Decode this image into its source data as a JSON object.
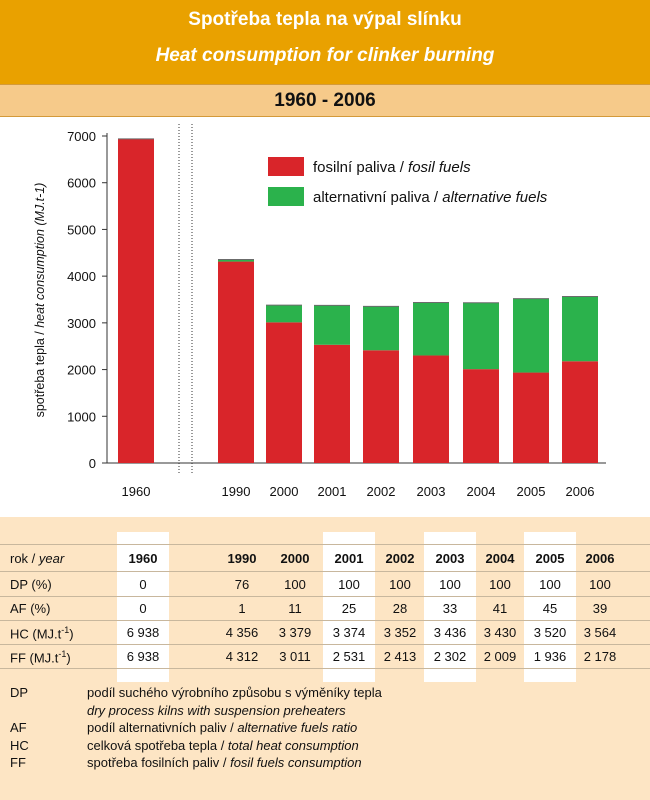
{
  "header": {
    "title_cz": "Spotřeba tepla na výpal slínku",
    "title_en": "Heat consumption for clinker burning",
    "period": "1960 - 2006"
  },
  "chart_data": {
    "type": "bar",
    "stacked": true,
    "categories": [
      "1960",
      "1990",
      "2000",
      "2001",
      "2002",
      "2003",
      "2004",
      "2005",
      "2006"
    ],
    "series": [
      {
        "name": "fosilní paliva / fosil fuels",
        "color": "#d9252a",
        "values": [
          6938,
          4312,
          3011,
          2531,
          2413,
          2302,
          2009,
          1936,
          2178
        ]
      },
      {
        "name": "alternativní paliva / alternative fuels",
        "color": "#2bb24c",
        "values": [
          0,
          44,
          368,
          843,
          939,
          1134,
          1421,
          1584,
          1386
        ]
      }
    ],
    "ylabel_cz": "spotřeba tepla / ",
    "ylabel_en": "heat consumption (MJ.t-1)",
    "ylim": [
      0,
      7000
    ],
    "yticks": [
      "0",
      "1000",
      "2000",
      "3000",
      "4000",
      "5000",
      "6000",
      "7000"
    ],
    "grid": false,
    "legend_position": "top-right",
    "break_between": [
      "1960",
      "1990"
    ]
  },
  "legend": {
    "fossil_cz": "fosilní paliva",
    "fossil_en": "fosil fuels",
    "alt_cz": "alternativní paliva",
    "alt_en": "alternative fuels",
    "sep": " / "
  },
  "table": {
    "header_label_cz": "rok",
    "header_label_en": "year",
    "years": [
      "1960",
      "1990",
      "2000",
      "2001",
      "2002",
      "2003",
      "2004",
      "2005",
      "2006"
    ],
    "rows": [
      {
        "label": "DP (%)",
        "values": [
          "0",
          "76",
          "100",
          "100",
          "100",
          "100",
          "100",
          "100",
          "100"
        ]
      },
      {
        "label": "AF (%)",
        "values": [
          "0",
          "1",
          "11",
          "25",
          "28",
          "33",
          "41",
          "45",
          "39"
        ]
      },
      {
        "label": "HC (MJ.t-1)",
        "values": [
          "6 938",
          "4 356",
          "3 379",
          "3 374",
          "3 352",
          "3 436",
          "3 430",
          "3 520",
          "3 564"
        ]
      },
      {
        "label": "FF (MJ.t-1)",
        "values": [
          "6 938",
          "4 312",
          "3 011",
          "2 531",
          "2 413",
          "2 302",
          "2 009",
          "1 936",
          "2 178"
        ]
      }
    ]
  },
  "abbreviations": [
    {
      "abbr": "DP",
      "cz": "podíl suchého výrobního způsobu s výměníky tepla",
      "en": ""
    },
    {
      "abbr": "",
      "cz": "",
      "en": "dry process kilns with suspension preheaters"
    },
    {
      "abbr": "AF",
      "cz": "podíl alternativních paliv / ",
      "en": "alternative fuels ratio"
    },
    {
      "abbr": "HC",
      "cz": "celková spotřeba tepla / ",
      "en": "total heat consumption"
    },
    {
      "abbr": "FF",
      "cz": "spotřeba fosilních paliv / ",
      "en": "fosil fuels consumption"
    }
  ]
}
